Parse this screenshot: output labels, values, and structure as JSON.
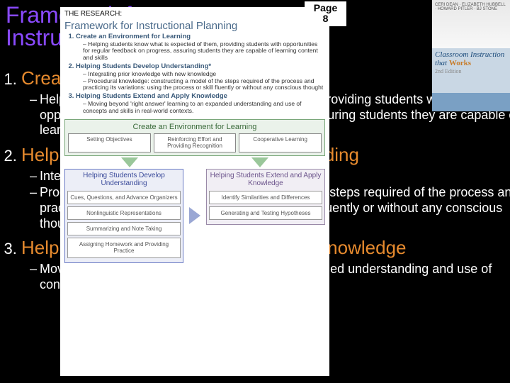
{
  "slide": {
    "title_line1": "Framework for",
    "title_line2": "Instructional Planning",
    "page_badge_1": "Page",
    "page_badge_2": "8"
  },
  "book": {
    "authors": "CERI DEAN · ELIZABETH HUBBELL · HOWARD PITLER · BJ STONE",
    "title_a": "Classroom",
    "title_b": "Instruction",
    "title_c": "that",
    "title_d": "Works",
    "edition": "2nd Edition"
  },
  "list": {
    "i1": {
      "h": "Create an Environment for Learning",
      "b1": "Helping students know what is expected of them, providing students with opportunities for regular feedback on progress, assuring students they are capable of learning content and skills"
    },
    "i2": {
      "h": "Helping Students Develop Understanding",
      "b1": "Integrating prior knowledge with new knowledge",
      "b2": "Procedural knowledge: constructing a model of the steps required of the process and practicing its variations: using the process or skill fluently or without any conscious thought"
    },
    "i3": {
      "h": "Helping Students Extend and Apply Knowledge",
      "b1": "Moving beyond 'right answer' learning to an expanded understanding and use of concepts and skills in real-world contexts"
    }
  },
  "inset": {
    "research": "THE RESEARCH:",
    "title": "Framework for Instructional Planning",
    "fw1": "Create an Environment for Learning",
    "fw1d": "Helping students know what is expected of them, providing students with opportunities for regular feedback on progress, assuring students they are capable of learning content and skills",
    "fw2": "Helping Students Develop Understanding*",
    "fw2d1": "Integrating prior knowledge with new knowledge",
    "fw2d2": "Procedural knowledge: constructing a model of the steps required of the process and practicing its variations: using the process or skill fluently or without any conscious thought",
    "fw3": "Helping Students Extend and Apply Knowledge",
    "fw3d": "Moving beyond 'right answer' learning to an expanded understanding and use of concepts and skills in real-world contexts.",
    "env_title": "Create an Environment for Learning",
    "env_c1": "Setting Objectives",
    "env_c2": "Reinforcing Effort and Providing Recognition",
    "env_c3": "Cooperative Learning",
    "col1_title": "Helping Students Develop Understanding",
    "col1_c1": "Cues, Questions, and Advance Organizers",
    "col1_c2": "Nonlinguistic Representations",
    "col1_c3": "Summarizing and Note Taking",
    "col1_c4": "Assigning Homework and Providing Practice",
    "col2_title": "Helping Students Extend and Apply Knowledge",
    "col2_c1": "Identify Similarities and Differences",
    "col2_c2": "Generating and Testing Hypotheses"
  },
  "colors": {
    "bg": "#000000",
    "title": "#8a4aff",
    "accent": "#e68a2e",
    "body": "#ffffff",
    "env_border": "#7aa77a",
    "understand_border": "#6a7ac4",
    "apply_border": "#9a8aa8"
  }
}
